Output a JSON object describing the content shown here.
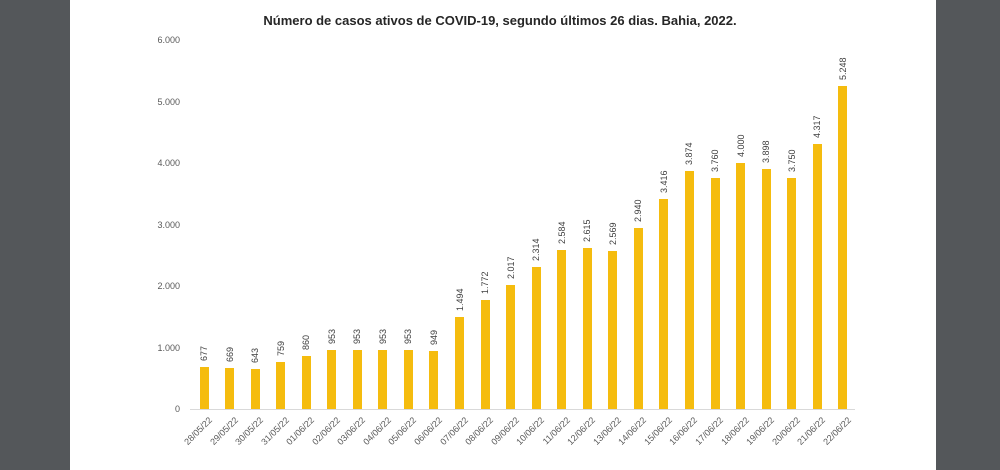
{
  "chart_data": {
    "type": "bar",
    "title": "Número de casos ativos de COVID-19, segundo últimos 26 dias.  Bahia, 2022.",
    "xlabel": "",
    "ylabel": "",
    "ylim": [
      0,
      6000
    ],
    "grid": false,
    "legend": null,
    "bar_color": "#f5bc0e",
    "y_ticks": [
      "0",
      "1.000",
      "2.000",
      "3.000",
      "4.000",
      "5.000",
      "6.000"
    ],
    "categories": [
      "28/05/22",
      "29/05/22",
      "30/05/22",
      "31/05/22",
      "01/06/22",
      "02/06/22",
      "03/06/22",
      "04/06/22",
      "05/06/22",
      "06/06/22",
      "07/06/22",
      "08/06/22",
      "09/06/22",
      "10/06/22",
      "11/06/22",
      "12/06/22",
      "13/06/22",
      "14/06/22",
      "15/06/22",
      "16/06/22",
      "17/06/22",
      "18/06/22",
      "19/06/22",
      "20/06/22",
      "21/06/22",
      "22/06/22"
    ],
    "values": [
      677,
      669,
      643,
      759,
      860,
      953,
      953,
      953,
      953,
      949,
      1494,
      1772,
      2017,
      2314,
      2584,
      2615,
      2569,
      2940,
      3416,
      3874,
      3760,
      4000,
      3898,
      3750,
      4317,
      5248
    ],
    "value_labels": [
      "677",
      "669",
      "643",
      "759",
      "860",
      "953",
      "953",
      "953",
      "953",
      "949",
      "1.494",
      "1.772",
      "2.017",
      "2.314",
      "2.584",
      "2.615",
      "2.569",
      "2.940",
      "3.416",
      "3.874",
      "3.760",
      "4.000",
      "3.898",
      "3.750",
      "4.317",
      "5.248"
    ]
  }
}
